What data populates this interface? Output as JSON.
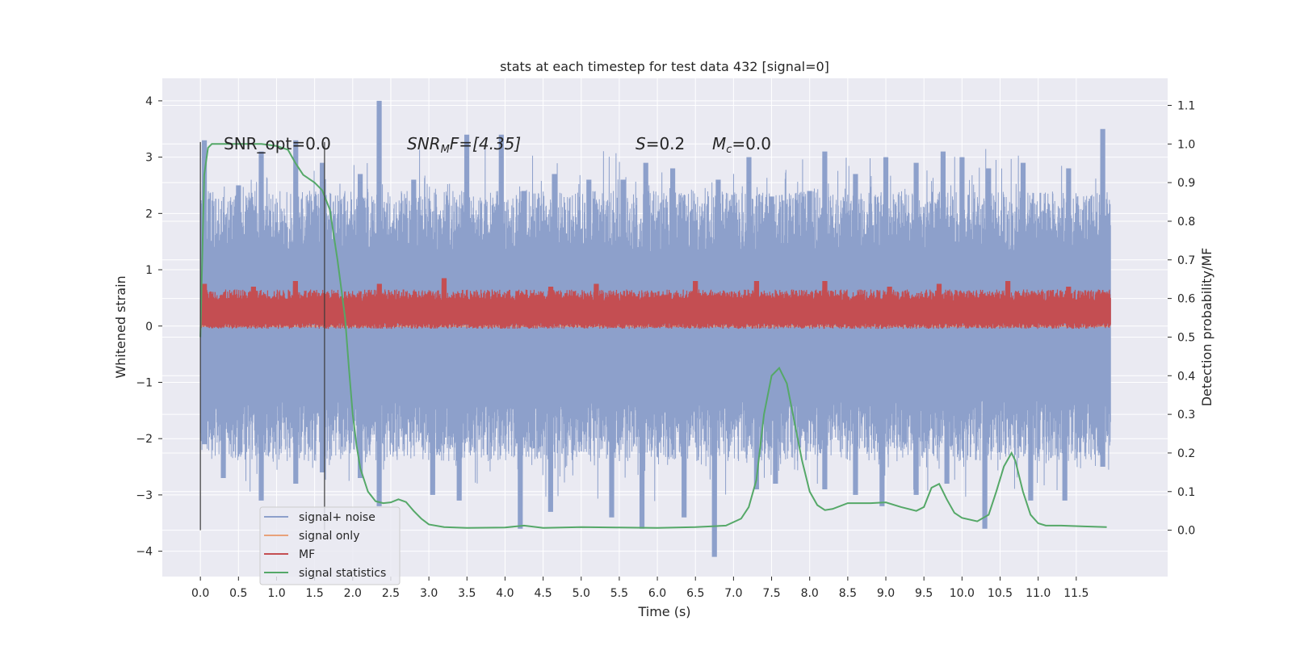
{
  "chart_data": {
    "type": "line",
    "title": "stats at each timestep for test data 432 [signal=0]",
    "xlabel": "Time (s)",
    "ylabel_left": "Whitened strain",
    "ylabel_right": "Detection probability/MF",
    "xlim": [
      -0.5,
      12.7
    ],
    "ylim_left": [
      -4.45,
      4.4
    ],
    "ylim_right": [
      -0.12,
      1.17
    ],
    "xticks": [
      "0.0",
      "0.5",
      "1.0",
      "1.5",
      "2.0",
      "2.5",
      "3.0",
      "3.5",
      "4.0",
      "4.5",
      "5.0",
      "5.5",
      "6.0",
      "6.5",
      "7.0",
      "7.5",
      "8.0",
      "8.5",
      "9.0",
      "9.5",
      "10.0",
      "10.5",
      "11.0",
      "11.5"
    ],
    "yticks_left": [
      "4",
      "3",
      "2",
      "1",
      "0",
      "−1",
      "−2",
      "−3",
      "−4"
    ],
    "yticks_right": [
      "1.1",
      "1.0",
      "0.9",
      "0.8",
      "0.7",
      "0.6",
      "0.5",
      "0.4",
      "0.3",
      "0.2",
      "0.1",
      "0.0"
    ],
    "grid": true,
    "legend_position": "lower-left",
    "annotations": {
      "snr_opt": "SNR_opt=0.0",
      "snr_mf_base": "SNR",
      "snr_mf_sub": "M",
      "snr_mf_rest": "F=[4.35]",
      "s_sym": "S",
      "s_val": "=0.2",
      "mc_sym": "M",
      "mc_sub": "c",
      "mc_val": "=0.0"
    },
    "vertical_markers": [
      0.0,
      1.63
    ],
    "series": [
      {
        "name": "signal+ noise",
        "color": "#8da0cb",
        "description_range": [
          -3.5,
          3.5
        ],
        "x_range": [
          0.0,
          11.95
        ],
        "typical_band": [
          -1.3,
          1.3
        ],
        "peaks_upper": [
          [
            0.05,
            3.3
          ],
          [
            0.5,
            2.5
          ],
          [
            0.8,
            3.1
          ],
          [
            1.25,
            3.3
          ],
          [
            1.6,
            2.9
          ],
          [
            2.1,
            2.7
          ],
          [
            2.35,
            4.0
          ],
          [
            2.8,
            2.6
          ],
          [
            3.5,
            3.4
          ],
          [
            3.95,
            3.4
          ],
          [
            4.25,
            2.4
          ],
          [
            4.65,
            2.7
          ],
          [
            5.1,
            2.6
          ],
          [
            5.55,
            2.6
          ],
          [
            5.85,
            2.9
          ],
          [
            6.2,
            2.8
          ],
          [
            6.8,
            2.6
          ],
          [
            7.2,
            3.0
          ],
          [
            7.5,
            2.3
          ],
          [
            8.0,
            2.4
          ],
          [
            8.2,
            3.1
          ],
          [
            8.6,
            2.7
          ],
          [
            9.0,
            3.0
          ],
          [
            9.4,
            2.9
          ],
          [
            9.75,
            3.1
          ],
          [
            10.0,
            3.0
          ],
          [
            10.35,
            2.8
          ],
          [
            10.8,
            2.9
          ],
          [
            11.4,
            2.8
          ],
          [
            11.85,
            3.5
          ]
        ],
        "peaks_lower": [
          [
            0.05,
            -2.1
          ],
          [
            0.3,
            -2.7
          ],
          [
            0.8,
            -3.1
          ],
          [
            1.25,
            -2.8
          ],
          [
            1.6,
            -2.6
          ],
          [
            2.1,
            -2.7
          ],
          [
            2.35,
            -3.2
          ],
          [
            3.05,
            -3.0
          ],
          [
            3.4,
            -3.1
          ],
          [
            4.2,
            -3.6
          ],
          [
            4.6,
            -3.3
          ],
          [
            5.4,
            -3.4
          ],
          [
            5.8,
            -3.6
          ],
          [
            6.35,
            -3.4
          ],
          [
            6.75,
            -4.1
          ],
          [
            7.3,
            -2.9
          ],
          [
            7.55,
            -2.8
          ],
          [
            8.2,
            -2.9
          ],
          [
            8.6,
            -3.0
          ],
          [
            8.95,
            -3.2
          ],
          [
            9.4,
            -3.0
          ],
          [
            9.8,
            -2.8
          ],
          [
            10.3,
            -3.6
          ],
          [
            10.9,
            -3.1
          ],
          [
            11.35,
            -3.1
          ],
          [
            11.85,
            -2.5
          ]
        ]
      },
      {
        "name": "signal only",
        "color": "#e8a27a",
        "values_note_zero": true,
        "x": [
          0.0,
          11.95
        ],
        "y": [
          0.0,
          0.0
        ]
      },
      {
        "name": "MF",
        "color": "#c44e52",
        "axis": "left",
        "x_range": [
          0.0,
          11.95
        ],
        "band": [
          0.05,
          0.55
        ],
        "peaks_upper": [
          [
            0.05,
            0.75
          ],
          [
            0.7,
            0.7
          ],
          [
            1.25,
            0.8
          ],
          [
            2.35,
            0.75
          ],
          [
            3.2,
            0.85
          ],
          [
            4.6,
            0.7
          ],
          [
            5.2,
            0.75
          ],
          [
            6.5,
            0.8
          ],
          [
            7.3,
            0.8
          ],
          [
            8.2,
            0.8
          ],
          [
            9.05,
            0.7
          ],
          [
            9.7,
            0.75
          ],
          [
            10.6,
            0.8
          ],
          [
            11.4,
            0.7
          ]
        ]
      },
      {
        "name": "signal statistics",
        "color": "#55a868",
        "axis": "right",
        "x": [
          0.0,
          0.05,
          0.1,
          0.15,
          0.2,
          0.4,
          0.6,
          0.8,
          1.0,
          1.15,
          1.25,
          1.35,
          1.5,
          1.6,
          1.7,
          1.8,
          1.9,
          1.95,
          2.0,
          2.05,
          2.1,
          2.2,
          2.3,
          2.4,
          2.5,
          2.6,
          2.7,
          2.8,
          2.9,
          3.0,
          3.2,
          3.5,
          4.0,
          4.25,
          4.5,
          5.0,
          5.5,
          6.0,
          6.5,
          6.9,
          7.1,
          7.2,
          7.3,
          7.4,
          7.5,
          7.6,
          7.7,
          7.8,
          7.9,
          8.0,
          8.1,
          8.2,
          8.3,
          8.5,
          8.8,
          9.0,
          9.2,
          9.4,
          9.5,
          9.6,
          9.7,
          9.8,
          9.9,
          10.0,
          10.2,
          10.35,
          10.45,
          10.55,
          10.65,
          10.7,
          10.8,
          10.9,
          11.0,
          11.1,
          11.3,
          11.6,
          11.9
        ],
        "y": [
          0.5,
          0.92,
          0.99,
          1.0,
          1.0,
          1.0,
          1.0,
          1.0,
          0.995,
          0.985,
          0.95,
          0.92,
          0.9,
          0.88,
          0.83,
          0.7,
          0.55,
          0.42,
          0.3,
          0.22,
          0.16,
          0.1,
          0.075,
          0.07,
          0.072,
          0.08,
          0.073,
          0.05,
          0.03,
          0.015,
          0.008,
          0.006,
          0.007,
          0.012,
          0.006,
          0.008,
          0.007,
          0.006,
          0.008,
          0.012,
          0.03,
          0.06,
          0.13,
          0.3,
          0.4,
          0.42,
          0.38,
          0.28,
          0.18,
          0.1,
          0.065,
          0.052,
          0.055,
          0.07,
          0.07,
          0.072,
          0.06,
          0.05,
          0.06,
          0.11,
          0.12,
          0.08,
          0.045,
          0.032,
          0.023,
          0.04,
          0.1,
          0.165,
          0.2,
          0.18,
          0.1,
          0.04,
          0.018,
          0.012,
          0.012,
          0.01,
          0.008
        ]
      }
    ]
  }
}
